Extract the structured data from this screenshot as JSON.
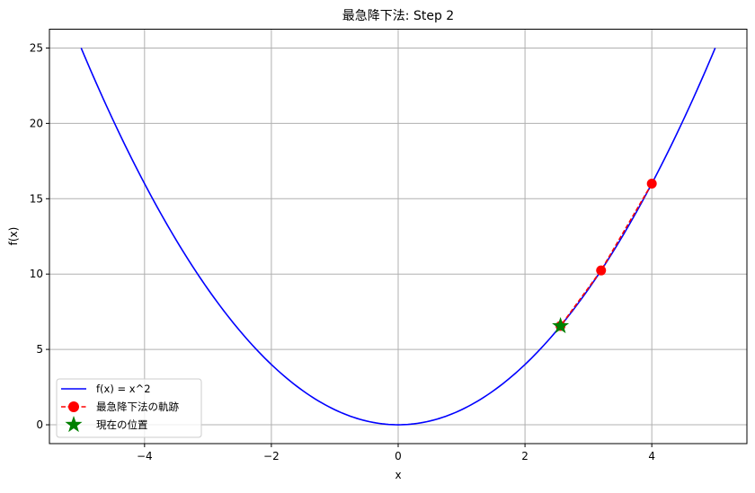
{
  "chart_data": {
    "type": "line",
    "title": "最急降下法: Step 2",
    "xlabel": "x",
    "ylabel": "f(x)",
    "xlim": [
      -5.5,
      5.5
    ],
    "ylim": [
      -1.25,
      26.25
    ],
    "xticks": [
      -4,
      -2,
      0,
      2,
      4
    ],
    "xtick_labels": [
      "−4",
      "−2",
      "0",
      "2",
      "4"
    ],
    "yticks": [
      0,
      5,
      10,
      15,
      20,
      25
    ],
    "ytick_labels": [
      "0",
      "5",
      "10",
      "15",
      "20",
      "25"
    ],
    "grid": true,
    "legend_placement": "lower-left",
    "series": [
      {
        "name": "f(x) = x^2",
        "kind": "curve",
        "function": "x^2",
        "x_range": [
          -5,
          5
        ],
        "color": "#0000ff",
        "style": "solid"
      },
      {
        "name": "最急降下法の軌跡",
        "kind": "line-markers",
        "x": [
          4,
          3.2,
          2.56
        ],
        "y": [
          16,
          10.24,
          6.5536
        ],
        "color": "#ff0000",
        "style": "dashed",
        "marker": "circle"
      },
      {
        "name": "現在の位置",
        "kind": "scatter",
        "x": [
          2.56
        ],
        "y": [
          6.5536
        ],
        "color": "#008000",
        "marker": "star"
      }
    ]
  }
}
